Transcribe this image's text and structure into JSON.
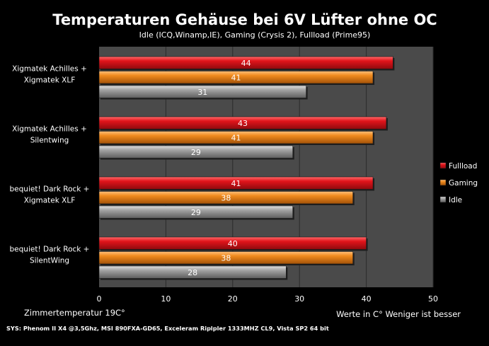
{
  "chart_data": {
    "type": "bar",
    "orientation": "horizontal",
    "title": "Temperaturen Gehäuse bei 6V Lüfter ohne OC",
    "subtitle": "Idle (ICQ,Winamp,IE), Gaming (Crysis 2), Fullload (Prime95)",
    "categories": [
      [
        "Xigmatek Achilles +",
        "Xigmatek XLF"
      ],
      [
        "Xigmatek Achilles +",
        "Silentwing"
      ],
      [
        "bequiet! Dark Rock +",
        "Xigmatek XLF"
      ],
      [
        "bequiet! Dark Rock +",
        "SilentWing"
      ]
    ],
    "series": [
      {
        "name": "Fullload",
        "values": [
          44,
          43,
          41,
          40
        ],
        "color": "#e1141b"
      },
      {
        "name": "Gaming",
        "values": [
          41,
          41,
          38,
          38
        ],
        "color": "#f08b1e"
      },
      {
        "name": "Idle",
        "values": [
          31,
          29,
          29,
          28
        ],
        "color": "#9b9b9b"
      }
    ],
    "xlim": [
      0,
      50
    ],
    "xticks": [
      0,
      10,
      20,
      30,
      40,
      50
    ],
    "grid": true,
    "legend_position": "right",
    "annotations": {
      "bottom_left": "Zimmertemperatur 19C°",
      "bottom_right": "Werte in C° Weniger ist besser",
      "footer": "SYS: Phenom II X4 @3,5Ghz, MSI 890FXA-GD65, Exceleram Riplpler 1333MHZ CL9, Vista SP2 64 bit"
    }
  },
  "colors": {
    "background": "#000000",
    "plot_area": "#4a4a4a",
    "grid": "#2b2b2b",
    "text": "#ffffff"
  }
}
